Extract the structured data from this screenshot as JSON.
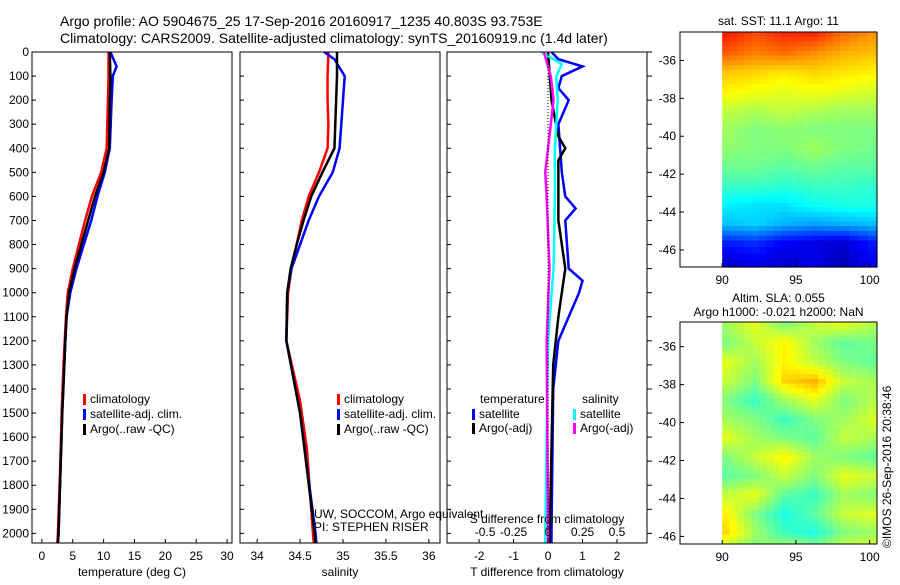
{
  "title": {
    "line1": "Argo profile: AO 5904675_25 17-Sep-2016 20160917_1235 40.803S 93.753E",
    "line2": "Climatology: CARS2009. Satellite-adjusted climatology: synTS_20160919.nc (1.4d later)"
  },
  "credits": {
    "line1": "UW, SOCCOM, Argo equivalent",
    "line2": "PI: STEPHEN RISER",
    "stamp": "©IMOS 26-Sep-2016 20:38:46"
  },
  "colors": {
    "climatology": "#ff0000",
    "satellite": "#0000ff",
    "argo": "#000000",
    "sal_satellite": "#00ffff",
    "sal_argo": "#ff00ff"
  },
  "chart_data": [
    {
      "type": "line",
      "id": "temperature",
      "xlabel": "temperature (deg C)",
      "ylabel": "depth",
      "xlim": [
        -1.6,
        30.8
      ],
      "ylim": [
        2040,
        0
      ],
      "xticks": [
        0,
        5,
        10,
        15,
        20,
        25,
        30
      ],
      "yticks": [
        0,
        100,
        200,
        300,
        400,
        500,
        600,
        700,
        800,
        900,
        1000,
        1100,
        1200,
        1300,
        1400,
        1500,
        1600,
        1700,
        1800,
        1900,
        2000
      ],
      "legend": [
        "climatology",
        "satellite-adj. clim.",
        "Argo(..raw -QC)"
      ],
      "series": [
        {
          "name": "climatology",
          "color": "#ff0000",
          "depth": [
            0,
            100,
            200,
            400,
            500,
            600,
            700,
            800,
            900,
            1000,
            1100,
            1200,
            1300,
            1500,
            1700,
            2000,
            2040
          ],
          "values": [
            10.8,
            10.8,
            10.7,
            10.5,
            9.6,
            8.1,
            7.0,
            6.0,
            5.0,
            4.2,
            3.9,
            3.7,
            3.5,
            3.2,
            3.0,
            2.6,
            2.5
          ]
        },
        {
          "name": "satellite-adj. clim.",
          "color": "#0000ff",
          "depth": [
            0,
            60,
            100,
            200,
            400,
            500,
            600,
            700,
            800,
            900,
            1000,
            1100,
            1200,
            1500,
            2000,
            2040
          ],
          "values": [
            11.1,
            12.1,
            11.5,
            11.3,
            11.0,
            10.2,
            9.0,
            8.0,
            6.8,
            5.6,
            4.6,
            4.0,
            3.8,
            3.3,
            2.7,
            2.6
          ]
        },
        {
          "name": "Argo(..raw -QC)",
          "color": "#000000",
          "depth": [
            0,
            100,
            200,
            400,
            500,
            600,
            700,
            800,
            900,
            1000,
            1100,
            1200,
            1500,
            2000,
            2040
          ],
          "values": [
            11.0,
            11.1,
            11.0,
            10.9,
            10.0,
            8.6,
            7.5,
            6.4,
            5.3,
            4.4,
            4.0,
            3.8,
            3.3,
            2.7,
            2.6
          ]
        }
      ]
    },
    {
      "type": "line",
      "id": "salinity",
      "xlabel": "salinity",
      "ylim": [
        2040,
        0
      ],
      "xlim": [
        33.8,
        36.13
      ],
      "xticks": [
        34,
        34.5,
        35,
        35.5,
        36
      ],
      "legend": [
        "climatology",
        "satellite-adj. clim.",
        "Argo(..raw -QC)"
      ],
      "series": [
        {
          "name": "climatology",
          "color": "#ff0000",
          "depth": [
            0,
            100,
            200,
            300,
            400,
            500,
            600,
            700,
            800,
            900,
            1000,
            1200,
            1450,
            1650,
            2000,
            2040
          ],
          "values": [
            34.83,
            34.82,
            34.82,
            34.83,
            34.82,
            34.72,
            34.6,
            34.52,
            34.46,
            34.4,
            34.36,
            34.34,
            34.5,
            34.58,
            34.65,
            34.66
          ]
        },
        {
          "name": "satellite-adj. clim.",
          "color": "#0000ff",
          "depth": [
            0,
            30,
            100,
            200,
            300,
            400,
            500,
            600,
            700,
            800,
            900,
            1000,
            1200,
            1500,
            2000,
            2040
          ],
          "values": [
            34.78,
            34.9,
            35.02,
            35.0,
            34.98,
            34.96,
            34.88,
            34.72,
            34.6,
            34.5,
            34.4,
            34.35,
            34.34,
            34.5,
            34.68,
            34.69
          ]
        },
        {
          "name": "Argo(..raw -QC)",
          "color": "#000000",
          "depth": [
            0,
            100,
            200,
            300,
            400,
            500,
            600,
            700,
            800,
            900,
            1000,
            1200,
            1500,
            2000,
            2040
          ],
          "values": [
            34.93,
            34.93,
            34.92,
            34.91,
            34.9,
            34.76,
            34.63,
            34.54,
            34.46,
            34.39,
            34.35,
            34.34,
            34.5,
            34.67,
            34.68
          ]
        }
      ]
    },
    {
      "type": "line",
      "id": "difference",
      "xlabel": "T difference from climatology",
      "x2label": "S difference from climatology",
      "xlim": [
        -2.93,
        2.87
      ],
      "ylim": [
        2040,
        0
      ],
      "xticks": [
        -2,
        -1,
        0,
        1,
        2
      ],
      "x2ticks": [
        -0.5,
        -0.25,
        0,
        0.25,
        0.5
      ],
      "x2ticklabels": [
        "-0.5",
        "-0.25",
        "0",
        "0.25",
        "0.5"
      ],
      "legend_headers": [
        "temperature",
        "salinity"
      ],
      "legend": [
        "satellite",
        "Argo(-adj)",
        "satellite",
        "Argo(-adj)"
      ],
      "series": [
        {
          "name": "T satellite",
          "color": "#0000ff",
          "units": "T",
          "depth": [
            0,
            30,
            60,
            100,
            150,
            200,
            300,
            500,
            600,
            650,
            700,
            900,
            950,
            1000,
            1100,
            1200,
            1400,
            2000,
            2040
          ],
          "values": [
            0.1,
            0.3,
            1.0,
            0.4,
            0.3,
            0.6,
            0.3,
            0.4,
            0.5,
            0.8,
            0.5,
            0.6,
            1.0,
            0.9,
            0.6,
            0.3,
            0.15,
            0.1,
            0.1
          ]
        },
        {
          "name": "T Argo(-adj)",
          "color": "#000000",
          "units": "T",
          "depth": [
            0,
            200,
            350,
            400,
            450,
            500,
            700,
            900,
            1000,
            1100,
            1300,
            2000,
            2040
          ],
          "values": [
            0.0,
            0.1,
            0.3,
            0.5,
            0.3,
            0.3,
            0.3,
            0.5,
            0.4,
            0.3,
            0.15,
            0.05,
            0.05
          ]
        },
        {
          "name": "S satellite",
          "color": "#00ffff",
          "units": "S",
          "depth": [
            0,
            50,
            100,
            200,
            400,
            600,
            900,
            1200,
            1600,
            2000,
            2040
          ],
          "values": [
            -0.05,
            0.1,
            0.06,
            0.07,
            0.05,
            0.05,
            0.04,
            0.0,
            -0.01,
            -0.02,
            -0.02
          ]
        },
        {
          "name": "S Argo(-adj)",
          "color": "#ff00ff",
          "units": "S",
          "depth": [
            0,
            100,
            200,
            400,
            500,
            600,
            900,
            1200,
            2000,
            2040
          ],
          "values": [
            -0.03,
            0.02,
            0.04,
            0.0,
            -0.02,
            -0.01,
            0.01,
            -0.01,
            0.0,
            0.0
          ]
        }
      ]
    },
    {
      "type": "heatmap",
      "id": "sst-map",
      "title": "sat. SST: 11.1 Argo: 11",
      "xlim": [
        87.14,
        100.5
      ],
      "ylim": [
        -46.9,
        -34.5
      ],
      "xticks": [
        90,
        95,
        100
      ],
      "yticks": [
        -36,
        -38,
        -40,
        -42,
        -44,
        -46
      ],
      "clim": [
        4,
        16
      ],
      "lon": [
        90,
        92,
        94,
        96,
        98,
        100.5
      ],
      "lat": [
        -34.5,
        -35.5,
        -36.5,
        -37.5,
        -38.5,
        -39.5,
        -40.5,
        -41.5,
        -42.5,
        -43.5,
        -44.5,
        -45.5,
        -46.9
      ],
      "values": [
        [
          14.2,
          13.6,
          14.0,
          14.0,
          13.2,
          12.6
        ],
        [
          13.4,
          13.0,
          13.2,
          12.8,
          12.4,
          12.2
        ],
        [
          12.2,
          12.0,
          11.8,
          12.0,
          11.8,
          11.6
        ],
        [
          11.6,
          11.4,
          11.2,
          11.4,
          11.2,
          11.0
        ],
        [
          10.8,
          10.6,
          10.8,
          10.6,
          10.4,
          10.4
        ],
        [
          10.4,
          10.0,
          10.2,
          10.0,
          10.0,
          10.0
        ],
        [
          10.2,
          10.0,
          10.0,
          10.4,
          10.0,
          9.8
        ],
        [
          9.8,
          9.8,
          9.6,
          9.8,
          9.6,
          9.6
        ],
        [
          9.2,
          9.2,
          9.0,
          9.2,
          9.2,
          9.0
        ],
        [
          8.4,
          8.2,
          8.2,
          8.6,
          8.8,
          8.8
        ],
        [
          7.8,
          8.0,
          7.6,
          7.4,
          7.6,
          7.8
        ],
        [
          5.8,
          6.0,
          5.4,
          5.2,
          5.0,
          6.0
        ],
        [
          4.6,
          5.0,
          4.8,
          5.2,
          4.6,
          5.6
        ]
      ]
    },
    {
      "type": "heatmap",
      "id": "sla-map",
      "title": "Altim. SLA: 0.055",
      "subtitle": "Argo h1000: -0.021 h2000: NaN",
      "xlim": [
        87.14,
        100.5
      ],
      "ylim": [
        -46.4,
        -34.7
      ],
      "xticks": [
        90,
        95,
        100
      ],
      "yticks": [
        -36,
        -38,
        -40,
        -42,
        -44,
        -46
      ],
      "clim": [
        -0.3,
        0.3
      ],
      "lon": [
        90,
        92,
        94,
        96,
        98,
        100.5
      ],
      "lat": [
        -34.7,
        -35.7,
        -36.7,
        -37.7,
        -38.7,
        -39.7,
        -40.7,
        -41.7,
        -42.7,
        -43.7,
        -44.7,
        -45.7,
        -46.4
      ],
      "values": [
        [
          0.02,
          0.06,
          0.0,
          0.04,
          0.06,
          0.02
        ],
        [
          0.0,
          0.04,
          0.08,
          0.02,
          -0.02,
          0.0
        ],
        [
          0.06,
          0.02,
          0.08,
          0.04,
          0.0,
          -0.02
        ],
        [
          0.04,
          0.0,
          0.1,
          0.12,
          0.04,
          0.02
        ],
        [
          0.0,
          -0.04,
          0.02,
          0.06,
          0.0,
          0.04
        ],
        [
          0.02,
          0.0,
          -0.04,
          0.0,
          0.02,
          0.06
        ],
        [
          0.06,
          0.02,
          0.0,
          -0.02,
          0.04,
          0.02
        ],
        [
          0.0,
          0.04,
          0.08,
          0.02,
          0.0,
          -0.02
        ],
        [
          -0.02,
          0.0,
          0.04,
          0.0,
          0.06,
          0.04
        ],
        [
          0.04,
          0.06,
          -0.02,
          -0.04,
          0.02,
          0.0
        ],
        [
          0.08,
          0.0,
          -0.06,
          -0.02,
          0.04,
          0.06
        ],
        [
          0.1,
          0.02,
          -0.04,
          -0.06,
          0.0,
          0.02
        ],
        [
          0.04,
          0.0,
          0.02,
          0.0,
          0.04,
          0.06
        ]
      ]
    }
  ]
}
